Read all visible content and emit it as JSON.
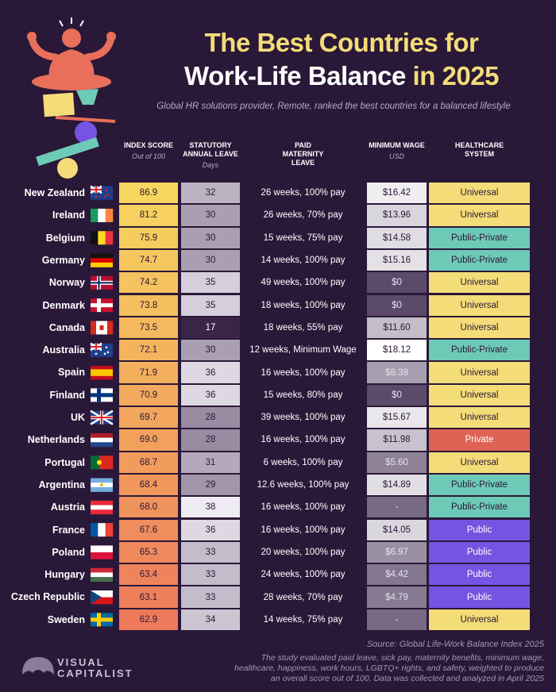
{
  "header": {
    "title_line1": "The Best Countries for",
    "title_line2": "Work-Life Balance",
    "title_line2_accent": "in 2025",
    "subtitle": "Global HR solutions provider, Remote, ranked the best countries for a balanced lifestyle"
  },
  "table": {
    "columns": [
      {
        "label": "INDEX SCORE",
        "sub": "Out of 100"
      },
      {
        "label": "STATUTORY ANNUAL LEAVE",
        "sub": "Days"
      },
      {
        "label": "PAID MATERNITY LEAVE"
      },
      {
        "label": "MINIMUM WAGE",
        "sub": "USD"
      },
      {
        "label": "HEALTHCARE SYSTEM"
      }
    ],
    "rows": [
      {
        "country": "New Zealand",
        "index": "86.9",
        "leave": "32",
        "maternity": "26 weeks, 100% pay",
        "wage": "$16.42",
        "healthcare": "Universal",
        "healthcare_color": "#f4dc78"
      },
      {
        "country": "Ireland",
        "index": "81.2",
        "leave": "30",
        "maternity": "26 weeks, 70% pay",
        "wage": "$13.96",
        "healthcare": "Universal",
        "healthcare_color": "#f4dc78"
      },
      {
        "country": "Belgium",
        "index": "75.9",
        "leave": "30",
        "maternity": "15 weeks, 75% pay",
        "wage": "$14.58",
        "healthcare": "Public-Private",
        "healthcare_color": "#6dcab6"
      },
      {
        "country": "Germany",
        "index": "74.7",
        "leave": "30",
        "maternity": "14 weeks, 100% pay",
        "wage": "$15.16",
        "healthcare": "Public-Private",
        "healthcare_color": "#6dcab6"
      },
      {
        "country": "Norway",
        "index": "74.2",
        "leave": "35",
        "maternity": "49 weeks, 100% pay",
        "wage": "$0",
        "healthcare": "Universal",
        "healthcare_color": "#f4dc78"
      },
      {
        "country": "Denmark",
        "index": "73.8",
        "leave": "35",
        "maternity": "18 weeks, 100% pay",
        "wage": "$0",
        "healthcare": "Universal",
        "healthcare_color": "#f4dc78"
      },
      {
        "country": "Canada",
        "index": "73.5",
        "leave": "17",
        "maternity": "18 weeks, 55% pay",
        "wage": "$11.60",
        "healthcare": "Universal",
        "healthcare_color": "#f4dc78"
      },
      {
        "country": "Australia",
        "index": "72.1",
        "leave": "30",
        "maternity": "12 weeks, Minimum Wage",
        "wage": "$18.12",
        "healthcare": "Public-Private",
        "healthcare_color": "#6dcab6"
      },
      {
        "country": "Spain",
        "index": "71.9",
        "leave": "36",
        "maternity": "16 weeks, 100% pay",
        "wage": "$8.39",
        "healthcare": "Universal",
        "healthcare_color": "#f4dc78"
      },
      {
        "country": "Finland",
        "index": "70.9",
        "leave": "36",
        "maternity": "15 weeks, 80% pay",
        "wage": "$0",
        "healthcare": "Universal",
        "healthcare_color": "#f4dc78"
      },
      {
        "country": "UK",
        "index": "69.7",
        "leave": "28",
        "maternity": "39 weeks, 100% pay",
        "wage": "$15.67",
        "healthcare": "Universal",
        "healthcare_color": "#f4dc78"
      },
      {
        "country": "Netherlands",
        "index": "69.0",
        "leave": "28",
        "maternity": "16 weeks, 100% pay",
        "wage": "$11.98",
        "healthcare": "Private",
        "healthcare_color": "#df6352"
      },
      {
        "country": "Portugal",
        "index": "68.7",
        "leave": "31",
        "maternity": "6 weeks, 100% pay",
        "wage": "$5.60",
        "healthcare": "Universal",
        "healthcare_color": "#f4dc78"
      },
      {
        "country": "Argentina",
        "index": "68.4",
        "leave": "29",
        "maternity": "12.6 weeks, 100% pay",
        "wage": "$14.89",
        "healthcare": "Public-Private",
        "healthcare_color": "#6dcab6"
      },
      {
        "country": "Austria",
        "index": "68.0",
        "leave": "38",
        "maternity": "16 weeks, 100% pay",
        "wage": "-",
        "healthcare": "Public-Private",
        "healthcare_color": "#6dcab6"
      },
      {
        "country": "France",
        "index": "67.6",
        "leave": "36",
        "maternity": "16 weeks, 100% pay",
        "wage": "$14.05",
        "healthcare": "Public",
        "healthcare_color": "#7653e0"
      },
      {
        "country": "Poland",
        "index": "65.3",
        "leave": "33",
        "maternity": "20 weeks, 100% pay",
        "wage": "$6.97",
        "healthcare": "Public",
        "healthcare_color": "#7653e0"
      },
      {
        "country": "Hungary",
        "index": "63.4",
        "leave": "33",
        "maternity": "24 weeks, 100% pay",
        "wage": "$4.42",
        "healthcare": "Public",
        "healthcare_color": "#7653e0"
      },
      {
        "country": "Czech Republic",
        "index": "63.1",
        "leave": "33",
        "maternity": "28 weeks, 70% pay",
        "wage": "$4.79",
        "healthcare": "Public",
        "healthcare_color": "#7653e0"
      },
      {
        "country": "Sweden",
        "index": "62.9",
        "leave": "34",
        "maternity": "14 weeks, 75% pay",
        "wage": "-",
        "healthcare": "Universal",
        "healthcare_color": "#f4dc78"
      }
    ]
  },
  "footer": {
    "source": "Source: Global Life-Work Balance Index 2025",
    "note_lines": [
      "The study evaluated paid leave, sick pay, maternity benefits, minimum wage,",
      "healthcare, happiness, work hours, LGBTQ+ rights, and safety, weighted to produce",
      "an overall score out of 100. Data was collected and analyzed in April 2025"
    ],
    "logo_line1": "VISUAL",
    "logo_line2": "CAPITALIST"
  }
}
